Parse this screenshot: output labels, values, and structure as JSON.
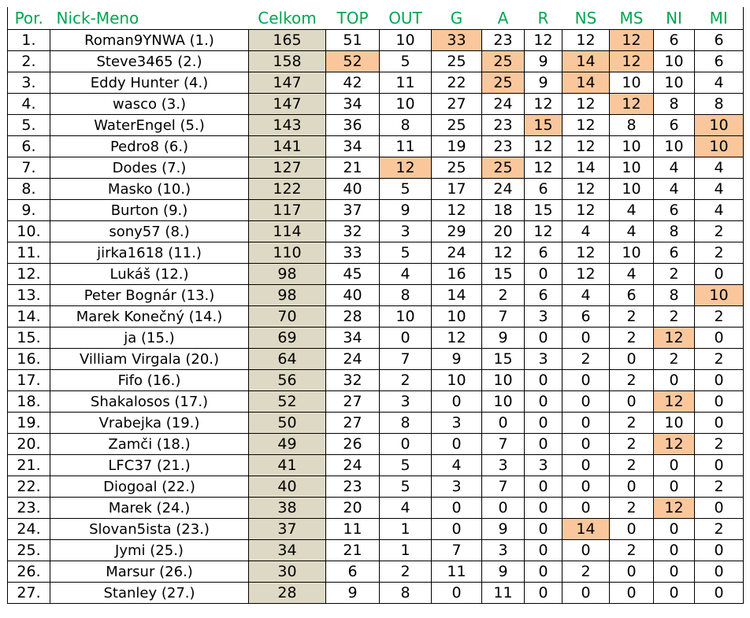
{
  "columns": [
    "Por.",
    "Nick-Meno",
    "Celkom",
    "TOP",
    "OUT",
    "G",
    "A",
    "R",
    "NS",
    "MS",
    "NI",
    "MI"
  ],
  "colors": {
    "header_text": "#00a651",
    "total_column_bg": "#ddd9c4",
    "highlight_bg": "#f9c79b"
  },
  "rows": [
    {
      "pos": "1.",
      "nick": "Roman9YNWA  (1.)",
      "vals": [
        165,
        51,
        10,
        33,
        23,
        12,
        12,
        12,
        6,
        6
      ],
      "hl": [
        "G",
        "MS"
      ]
    },
    {
      "pos": "2.",
      "nick": "Steve3465 (2.)",
      "vals": [
        158,
        52,
        5,
        25,
        25,
        9,
        14,
        12,
        10,
        6
      ],
      "hl": [
        "TOP",
        "A",
        "NS",
        "MS"
      ]
    },
    {
      "pos": "3.",
      "nick": "Eddy Hunter (4.)",
      "vals": [
        147,
        42,
        11,
        22,
        25,
        9,
        14,
        10,
        10,
        4
      ],
      "hl": [
        "A",
        "NS"
      ]
    },
    {
      "pos": "4.",
      "nick": "wasco (3.)",
      "vals": [
        147,
        34,
        10,
        27,
        24,
        12,
        12,
        12,
        8,
        8
      ],
      "hl": [
        "MS"
      ]
    },
    {
      "pos": "5.",
      "nick": "WaterEngel (5.)",
      "vals": [
        143,
        36,
        8,
        25,
        23,
        15,
        12,
        8,
        6,
        10
      ],
      "hl": [
        "R",
        "MI"
      ]
    },
    {
      "pos": "6.",
      "nick": "Pedro8 (6.)",
      "vals": [
        141,
        34,
        11,
        19,
        23,
        12,
        12,
        10,
        10,
        10
      ],
      "hl": [
        "MI"
      ]
    },
    {
      "pos": "7.",
      "nick": "Dodes (7.)",
      "vals": [
        127,
        21,
        12,
        25,
        25,
        12,
        14,
        10,
        4,
        4
      ],
      "hl": [
        "OUT",
        "A"
      ]
    },
    {
      "pos": "8.",
      "nick": "Masko (10.)",
      "vals": [
        122,
        40,
        5,
        17,
        24,
        6,
        12,
        10,
        4,
        4
      ],
      "hl": []
    },
    {
      "pos": "9.",
      "nick": "Burton (9.)",
      "vals": [
        117,
        37,
        9,
        12,
        18,
        15,
        12,
        4,
        6,
        4
      ],
      "hl": []
    },
    {
      "pos": "10.",
      "nick": "sony57 (8.)",
      "vals": [
        114,
        32,
        3,
        29,
        20,
        12,
        4,
        4,
        8,
        2
      ],
      "hl": []
    },
    {
      "pos": "11.",
      "nick": "jirka1618 (11.)",
      "vals": [
        110,
        33,
        5,
        24,
        12,
        6,
        12,
        10,
        6,
        2
      ],
      "hl": []
    },
    {
      "pos": "12.",
      "nick": "Lukáš (12.)",
      "vals": [
        98,
        45,
        4,
        16,
        15,
        0,
        12,
        4,
        2,
        0
      ],
      "hl": []
    },
    {
      "pos": "13.",
      "nick": "Peter Bognár (13.)",
      "vals": [
        98,
        40,
        8,
        14,
        2,
        6,
        4,
        6,
        8,
        10
      ],
      "hl": [
        "MI"
      ]
    },
    {
      "pos": "14.",
      "nick": "Marek Konečný (14.)",
      "vals": [
        70,
        28,
        10,
        10,
        7,
        3,
        6,
        2,
        2,
        2
      ],
      "hl": []
    },
    {
      "pos": "15.",
      "nick": "ja (15.)",
      "vals": [
        69,
        34,
        0,
        12,
        9,
        0,
        0,
        2,
        12,
        0
      ],
      "hl": [
        "NI"
      ]
    },
    {
      "pos": "16.",
      "nick": "Villiam Virgala (20.)",
      "vals": [
        64,
        24,
        7,
        9,
        15,
        3,
        2,
        0,
        2,
        2
      ],
      "hl": []
    },
    {
      "pos": "17.",
      "nick": "Fifo (16.)",
      "vals": [
        56,
        32,
        2,
        10,
        10,
        0,
        0,
        2,
        0,
        0
      ],
      "hl": []
    },
    {
      "pos": "18.",
      "nick": "Shakalosos (17.)",
      "vals": [
        52,
        27,
        3,
        0,
        10,
        0,
        0,
        0,
        12,
        0
      ],
      "hl": [
        "NI"
      ]
    },
    {
      "pos": "19.",
      "nick": "Vrabejka (19.)",
      "vals": [
        50,
        27,
        8,
        3,
        0,
        0,
        0,
        2,
        10,
        0
      ],
      "hl": []
    },
    {
      "pos": "20.",
      "nick": "Zamči (18.)",
      "vals": [
        49,
        26,
        0,
        0,
        7,
        0,
        0,
        2,
        12,
        2
      ],
      "hl": [
        "NI"
      ]
    },
    {
      "pos": "21.",
      "nick": "LFC37 (21.)",
      "vals": [
        41,
        24,
        5,
        4,
        3,
        3,
        0,
        2,
        0,
        0
      ],
      "hl": []
    },
    {
      "pos": "22.",
      "nick": "Diogoal (22.)",
      "vals": [
        40,
        23,
        5,
        3,
        7,
        0,
        0,
        0,
        0,
        2
      ],
      "hl": []
    },
    {
      "pos": "23.",
      "nick": "Marek (24.)",
      "vals": [
        38,
        20,
        4,
        0,
        0,
        0,
        0,
        2,
        12,
        0
      ],
      "hl": [
        "NI"
      ]
    },
    {
      "pos": "24.",
      "nick": "Slovan5ista (23.)",
      "vals": [
        37,
        11,
        1,
        0,
        9,
        0,
        14,
        0,
        0,
        2
      ],
      "hl": [
        "NS"
      ]
    },
    {
      "pos": "25.",
      "nick": "Jymi   (25.)",
      "vals": [
        34,
        21,
        1,
        7,
        3,
        0,
        0,
        2,
        0,
        0
      ],
      "hl": []
    },
    {
      "pos": "26.",
      "nick": "Marsur (26.)",
      "vals": [
        30,
        6,
        2,
        11,
        9,
        0,
        2,
        0,
        0,
        0
      ],
      "hl": []
    },
    {
      "pos": "27.",
      "nick": "Stanley (27.)",
      "vals": [
        28,
        9,
        8,
        0,
        11,
        0,
        0,
        0,
        0,
        0
      ],
      "hl": []
    }
  ]
}
